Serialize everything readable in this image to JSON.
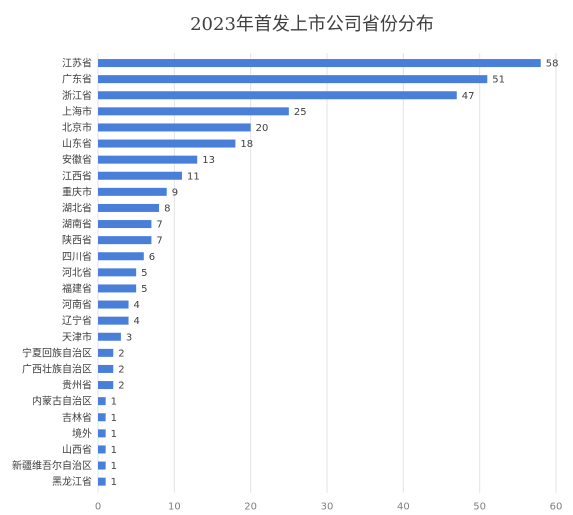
{
  "chart_data": {
    "type": "bar",
    "orientation": "horizontal",
    "title": "2023年首发上市公司省份分布",
    "xlabel": "",
    "ylabel": "",
    "categories": [
      "江苏省",
      "广东省",
      "浙江省",
      "上海市",
      "北京市",
      "山东省",
      "安徽省",
      "江西省",
      "重庆市",
      "湖北省",
      "湖南省",
      "陕西省",
      "四川省",
      "河北省",
      "福建省",
      "河南省",
      "辽宁省",
      "天津市",
      "宁夏回族自治区",
      "广西壮族自治区",
      "贵州省",
      "内蒙古自治区",
      "吉林省",
      "境外",
      "山西省",
      "新疆维吾尔自治区",
      "黑龙江省"
    ],
    "values": [
      58,
      51,
      47,
      25,
      20,
      18,
      13,
      11,
      9,
      8,
      7,
      7,
      6,
      5,
      5,
      4,
      4,
      3,
      2,
      2,
      2,
      1,
      1,
      1,
      1,
      1,
      1
    ],
    "xlim": [
      0,
      60
    ],
    "xticks": [
      0,
      10,
      20,
      30,
      40,
      50,
      60
    ],
    "grid": true,
    "legend": "none",
    "bar_color": "#4a7fd9"
  }
}
